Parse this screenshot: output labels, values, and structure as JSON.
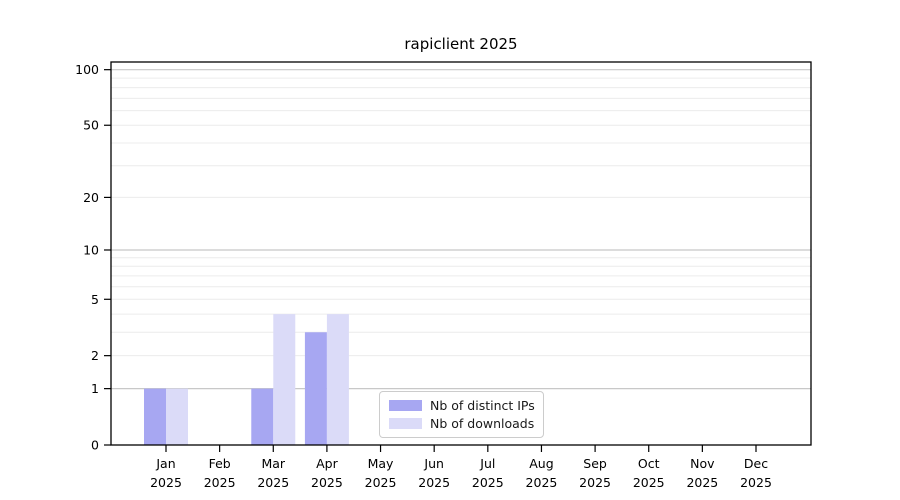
{
  "chart_data": {
    "type": "bar",
    "title": "rapiclient 2025",
    "x_categories": [
      "Jan",
      "Feb",
      "Mar",
      "Apr",
      "May",
      "Jun",
      "Jul",
      "Aug",
      "Sep",
      "Oct",
      "Nov",
      "Dec"
    ],
    "x_year": "2025",
    "series": [
      {
        "name": "Nb of distinct IPs",
        "color": "#a7a7f2",
        "values": [
          1,
          0,
          1,
          3,
          0,
          0,
          0,
          0,
          0,
          0,
          0,
          0
        ]
      },
      {
        "name": "Nb of downloads",
        "color": "#dbdbf8",
        "values": [
          1,
          0,
          4,
          4,
          0,
          0,
          0,
          0,
          0,
          0,
          0,
          0
        ]
      }
    ],
    "y_scale": "log10(1+x)",
    "ylim": [
      0,
      110
    ],
    "y_ticks": [
      0,
      1,
      2,
      5,
      10,
      20,
      50,
      100
    ],
    "y_major_gridlines": [
      1,
      10,
      100
    ],
    "y_minor_gridlines": [
      2,
      3,
      4,
      5,
      6,
      7,
      8,
      9,
      20,
      30,
      40,
      50,
      60,
      70,
      80,
      90
    ],
    "legend_position": "lower center",
    "grid": true
  },
  "colors": {
    "background": "#ffffff",
    "spine": "#000000",
    "grid_major": "#c8c8c8",
    "grid_minor": "#ececec",
    "text": "#000000",
    "legend_border": "#cccccc"
  }
}
